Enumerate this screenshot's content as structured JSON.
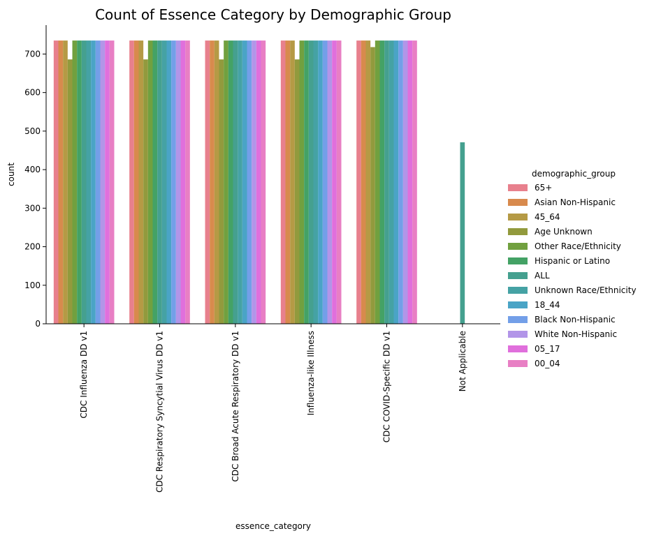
{
  "chart_data": {
    "type": "bar",
    "title": "Count of Essence Category by Demographic Group",
    "xlabel": "essence_category",
    "ylabel": "count",
    "ylim": [
      0,
      775
    ],
    "yticks": [
      0,
      100,
      200,
      300,
      400,
      500,
      600,
      700
    ],
    "grid": false,
    "legend_placement": "right",
    "legend_title": "demographic_group",
    "categories": [
      "CDC Influenza DD v1",
      "CDC Respiratory Syncytial Virus DD v1",
      "CDC Broad Acute Respiratory DD v1",
      "Influenza-like Illness",
      "CDC COVID-Specific DD v1",
      "Not Applicable"
    ],
    "series": [
      {
        "name": "65+",
        "color": "#e8808d",
        "values": [
          735,
          735,
          735,
          735,
          735,
          0
        ]
      },
      {
        "name": "Asian Non-Hispanic",
        "color": "#d88a4d",
        "values": [
          735,
          735,
          735,
          735,
          735,
          0
        ]
      },
      {
        "name": "45_64",
        "color": "#b59a45",
        "values": [
          735,
          735,
          735,
          735,
          735,
          0
        ]
      },
      {
        "name": "Age Unknown",
        "color": "#929a3d",
        "values": [
          686,
          686,
          686,
          686,
          718,
          0
        ]
      },
      {
        "name": "Other Race/Ethnicity",
        "color": "#71a03f",
        "values": [
          735,
          735,
          735,
          735,
          735,
          0
        ]
      },
      {
        "name": "Hispanic or Latino",
        "color": "#44a265",
        "values": [
          735,
          735,
          735,
          735,
          735,
          0
        ]
      },
      {
        "name": "ALL",
        "color": "#45a08f",
        "values": [
          735,
          735,
          735,
          735,
          735,
          471
        ]
      },
      {
        "name": "Unknown Race/Ethnicity",
        "color": "#45a2a4",
        "values": [
          735,
          735,
          735,
          735,
          735,
          0
        ]
      },
      {
        "name": "18_44",
        "color": "#4aa4c6",
        "values": [
          735,
          735,
          735,
          735,
          735,
          0
        ]
      },
      {
        "name": "Black Non-Hispanic",
        "color": "#739fe8",
        "values": [
          735,
          735,
          735,
          735,
          735,
          0
        ]
      },
      {
        "name": "White Non-Hispanic",
        "color": "#b295e8",
        "values": [
          735,
          735,
          735,
          735,
          735,
          0
        ]
      },
      {
        "name": "05_17",
        "color": "#e06fdc",
        "values": [
          735,
          735,
          735,
          735,
          735,
          0
        ]
      },
      {
        "name": "00_04",
        "color": "#e87fc4",
        "values": [
          735,
          735,
          735,
          735,
          735,
          0
        ]
      }
    ]
  }
}
